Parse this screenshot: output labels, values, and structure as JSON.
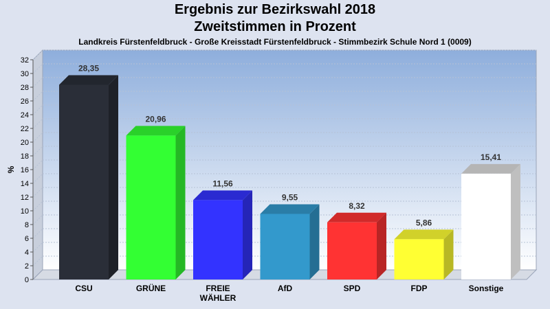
{
  "chart_data": {
    "type": "bar",
    "title": "Ergebnis zur Bezirkswahl 2018",
    "subtitle": "Zweitstimmen in Prozent",
    "caption": "Landkreis Fürstenfeldbruck - Große Kreisstadt Fürstenfeldbruck - Stimmbezirk Schule Nord 1 (0009)",
    "ylabel": "%",
    "xlabel": "",
    "ylim": [
      0,
      32
    ],
    "ytick_step": 2,
    "grid": true,
    "categories": [
      [
        "CSU"
      ],
      [
        "GRÜNE"
      ],
      [
        "FREIE",
        "WÄHLER"
      ],
      [
        "AfD"
      ],
      [
        "SPD"
      ],
      [
        "FDP"
      ],
      [
        "Sonstige"
      ]
    ],
    "values": [
      28.35,
      20.96,
      11.56,
      9.55,
      8.32,
      5.86,
      15.41
    ],
    "value_labels": [
      "28,35",
      "20,96",
      "11,56",
      "9,55",
      "8,32",
      "5,86",
      "15,41"
    ],
    "colors": [
      "#2a2e38",
      "#33ff33",
      "#3333ff",
      "#3399cc",
      "#ff3333",
      "#ffff33",
      "#ffffff"
    ]
  }
}
